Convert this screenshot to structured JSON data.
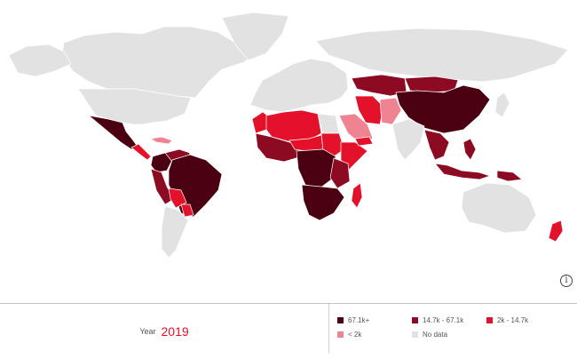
{
  "map": {
    "colors": {
      "sea": "#ffffff",
      "no_data": "#e2e2e2",
      "border": "#ffffff"
    }
  },
  "footer": {
    "year_label": "Year",
    "year_value": "2019"
  },
  "legend": [
    {
      "label": "67.1k+",
      "color": "#4a0010"
    },
    {
      "label": "14.7k - 67.1k",
      "color": "#8c0a22"
    },
    {
      "label": "2k - 14.7k",
      "color": "#e3122a"
    },
    {
      "label": "< 2k",
      "color": "#f08391"
    },
    {
      "label": "No data",
      "color": "#e2e2e2"
    }
  ],
  "regions": {
    "canada": "No data",
    "greenland": "No data",
    "usa": "No data",
    "mexico": "67.1k+",
    "central_america": "2k - 14.7k",
    "caribbean": "< 2k",
    "colombia": "67.1k+",
    "venezuela": "14.7k - 67.1k",
    "brazil": "67.1k+",
    "peru": "14.7k - 67.1k",
    "bolivia": "2k - 14.7k",
    "paraguay": "2k - 14.7k",
    "argentina_chile": "No data",
    "europe": "No data",
    "russia": "No data",
    "morocco": "2k - 14.7k",
    "algeria_libya": "2k - 14.7k",
    "west_africa": "14.7k - 67.1k",
    "sahel": "2k - 14.7k",
    "egypt": "No data",
    "sudan": "2k - 14.7k",
    "horn_of_africa": "2k - 14.7k",
    "central_africa": "67.1k+",
    "east_africa": "14.7k - 67.1k",
    "southern_africa": "67.1k+",
    "madagascar": "2k - 14.7k",
    "arabia": "< 2k",
    "yemen": "2k - 14.7k",
    "iran": "2k - 14.7k",
    "afghanistan_pakistan": "< 2k",
    "kazakhstan": "14.7k - 67.1k",
    "mongolia": "14.7k - 67.1k",
    "china": "67.1k+",
    "india": "No data",
    "southeast_asia": "14.7k - 67.1k",
    "philippines": "14.7k - 67.1k",
    "indonesia": "14.7k - 67.1k",
    "png": "14.7k - 67.1k",
    "australia": "No data",
    "new_zealand": "2k - 14.7k",
    "japan": "No data"
  }
}
